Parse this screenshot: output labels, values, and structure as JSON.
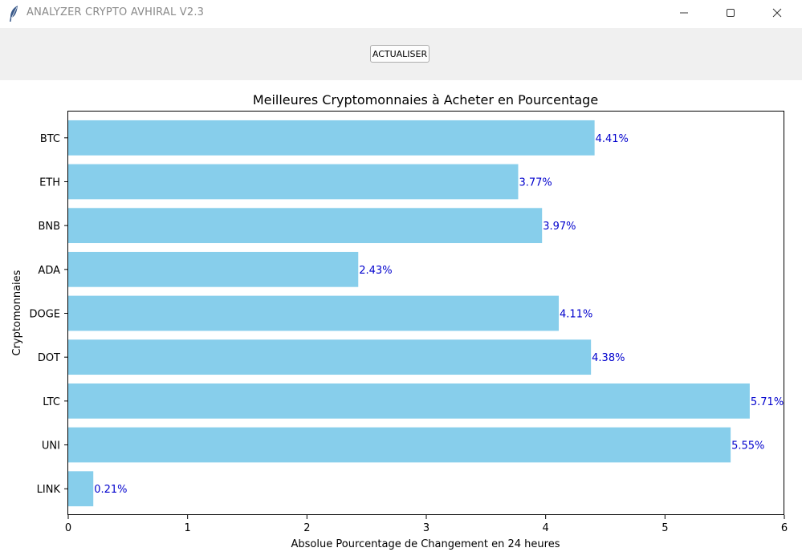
{
  "window": {
    "title": "ANALYZER CRYPTO AVHIRAL V2.3",
    "icon": "feather-icon"
  },
  "toolbar": {
    "refresh_label": "ACTUALISER"
  },
  "chart_data": {
    "type": "bar",
    "orientation": "horizontal",
    "title": "Meilleures Cryptomonnaies à Acheter en Pourcentage",
    "xlabel": "Absolue Pourcentage de Changement en 24 heures",
    "ylabel": "Cryptomonnaies",
    "categories": [
      "BTC",
      "ETH",
      "BNB",
      "ADA",
      "DOGE",
      "DOT",
      "LTC",
      "UNI",
      "LINK"
    ],
    "values": [
      4.41,
      3.77,
      3.97,
      2.43,
      4.11,
      4.38,
      5.71,
      5.55,
      0.21
    ],
    "value_labels": [
      "4.41%",
      "3.77%",
      "3.97%",
      "2.43%",
      "4.11%",
      "4.38%",
      "5.71%",
      "5.55%",
      "0.21%"
    ],
    "xlim": [
      0,
      6
    ],
    "xticks": [
      "0",
      "1",
      "2",
      "3",
      "4",
      "5",
      "6"
    ],
    "bar_color": "#87ceeb",
    "label_color": "#0000cd",
    "grid": false
  }
}
